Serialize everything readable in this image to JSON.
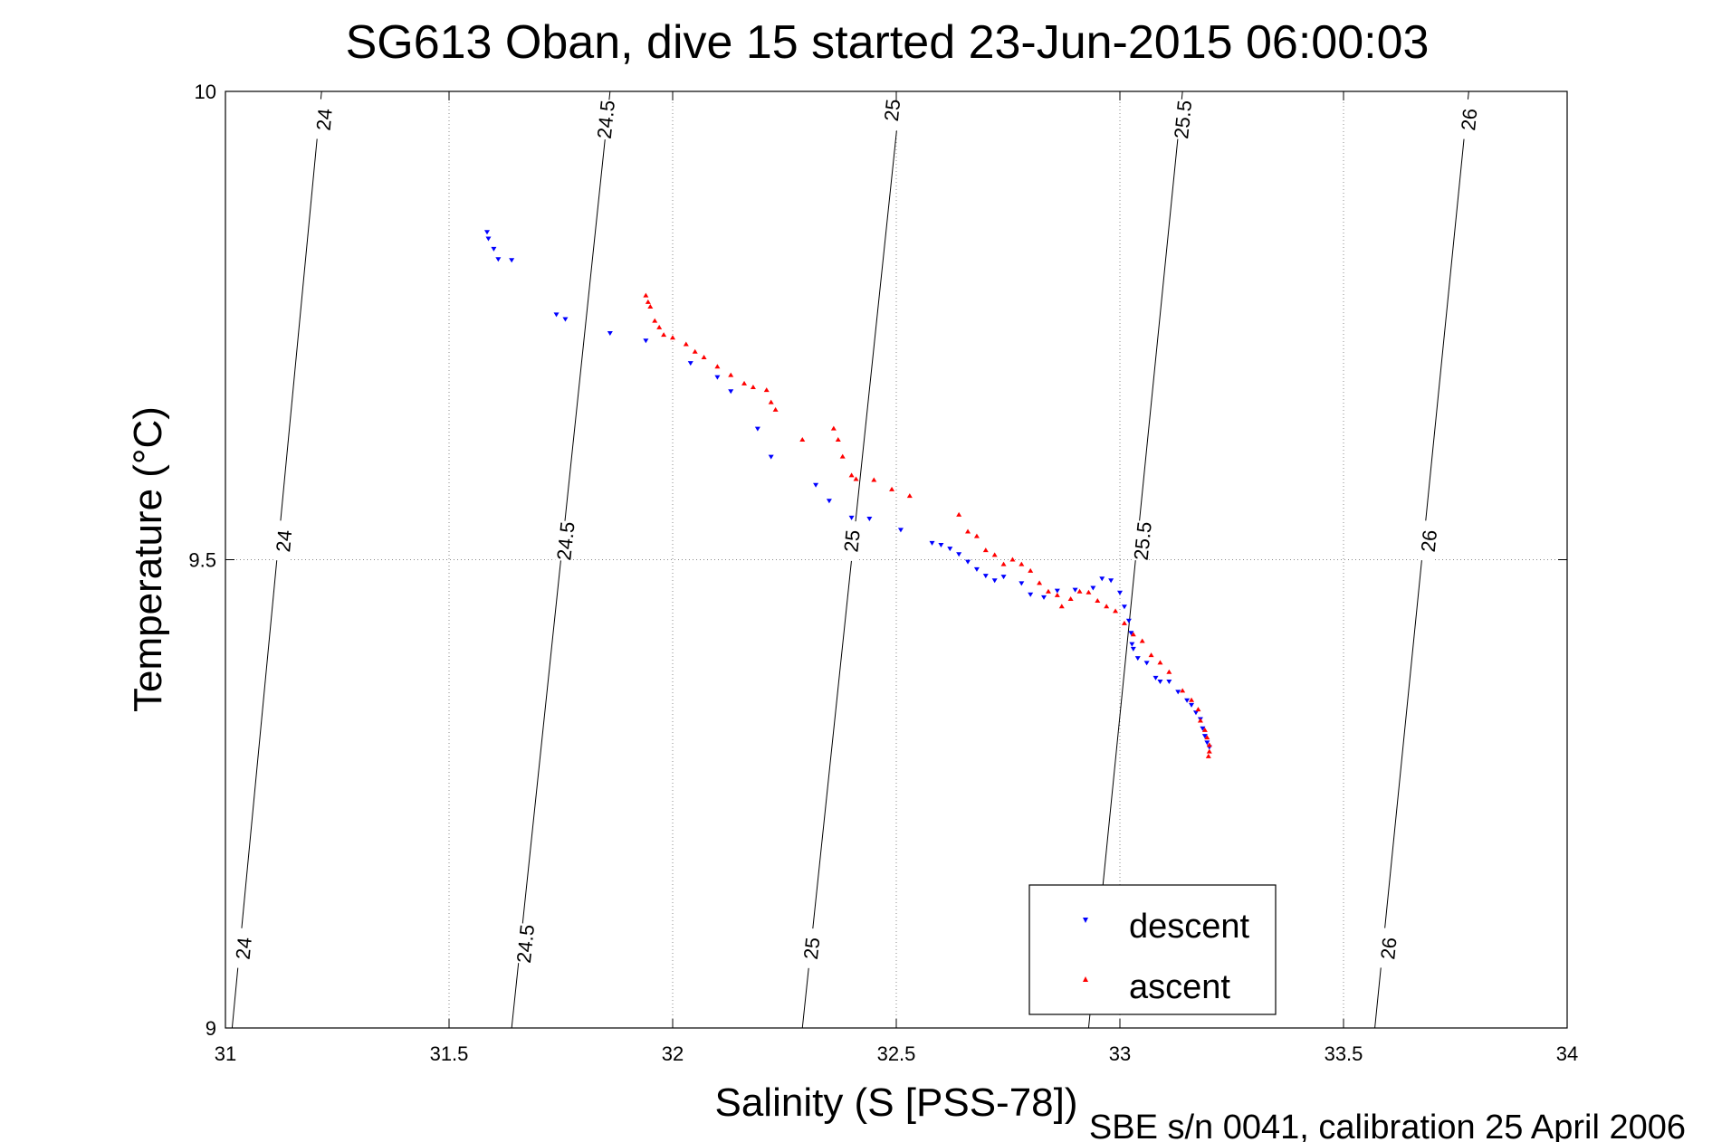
{
  "chart_data": {
    "type": "scatter",
    "title": "SG613 Oban, dive 15 started 23-Jun-2015 06:00:03",
    "xlabel": "Salinity (S [PSS-78])",
    "ylabel": "Temperature (°C)",
    "xlim": [
      31,
      34
    ],
    "ylim": [
      9,
      10
    ],
    "xticks": [
      31,
      31.5,
      32,
      32.5,
      33,
      33.5,
      34
    ],
    "xtick_labels": [
      "31",
      "31.5",
      "32",
      "32.5",
      "33",
      "33.5",
      "34"
    ],
    "yticks": [
      9,
      9.5,
      10
    ],
    "ytick_labels": [
      "9",
      "9.5",
      "10"
    ],
    "grid": "dotted",
    "legend_position": "bottom-right",
    "isopycnals": [
      {
        "label": "24",
        "from": [
          31.015,
          9.0
        ],
        "to": [
          31.215,
          10.0
        ],
        "label_points": [
          [
            31.04,
            9.085
          ],
          [
            31.13,
            9.52
          ],
          [
            31.22,
            9.97
          ]
        ]
      },
      {
        "label": "24.5",
        "from": [
          31.64,
          9.0
        ],
        "to": [
          31.86,
          10.0
        ],
        "label_points": [
          [
            31.67,
            9.09
          ],
          [
            31.76,
            9.52
          ],
          [
            31.85,
            9.97
          ]
        ]
      },
      {
        "label": "25",
        "from": [
          32.29,
          9.0
        ],
        "to": [
          32.51,
          10.0
        ],
        "label_points": [
          [
            32.31,
            9.085
          ],
          [
            32.4,
            9.52
          ],
          [
            32.49,
            9.98
          ]
        ]
      },
      {
        "label": "25.5",
        "from": [
          32.93,
          9.0
        ],
        "to": [
          33.14,
          10.0
        ],
        "label_points": [
          [
            32.96,
            9.085
          ],
          [
            33.05,
            9.52
          ],
          [
            33.14,
            9.97
          ]
        ]
      },
      {
        "label": "26",
        "from": [
          33.57,
          9.0
        ],
        "to": [
          33.78,
          10.0
        ],
        "label_points": [
          [
            33.6,
            9.085
          ],
          [
            33.69,
            9.52
          ],
          [
            33.78,
            9.97
          ]
        ]
      }
    ],
    "series": [
      {
        "name": "descent",
        "color": "#0000ff",
        "marker": "triangle-down",
        "points": [
          [
            31.585,
            9.85
          ],
          [
            31.588,
            9.843
          ],
          [
            31.6,
            9.832
          ],
          [
            31.61,
            9.821
          ],
          [
            31.64,
            9.82
          ],
          [
            31.74,
            9.762
          ],
          [
            31.76,
            9.757
          ],
          [
            31.86,
            9.742
          ],
          [
            31.94,
            9.734
          ],
          [
            32.04,
            9.71
          ],
          [
            32.1,
            9.695
          ],
          [
            32.13,
            9.68
          ],
          [
            32.19,
            9.64
          ],
          [
            32.22,
            9.61
          ],
          [
            32.32,
            9.58
          ],
          [
            32.35,
            9.563
          ],
          [
            32.4,
            9.545
          ],
          [
            32.44,
            9.544
          ],
          [
            32.51,
            9.532
          ],
          [
            32.58,
            9.518
          ],
          [
            32.6,
            9.516
          ],
          [
            32.62,
            9.512
          ],
          [
            32.64,
            9.506
          ],
          [
            32.66,
            9.498
          ],
          [
            32.68,
            9.49
          ],
          [
            32.7,
            9.483
          ],
          [
            32.72,
            9.478
          ],
          [
            32.74,
            9.482
          ],
          [
            32.78,
            9.475
          ],
          [
            32.8,
            9.463
          ],
          [
            32.83,
            9.46
          ],
          [
            32.86,
            9.467
          ],
          [
            32.9,
            9.468
          ],
          [
            32.94,
            9.47
          ],
          [
            32.96,
            9.48
          ],
          [
            32.98,
            9.478
          ],
          [
            33.0,
            9.465
          ],
          [
            33.01,
            9.45
          ],
          [
            33.02,
            9.435
          ],
          [
            33.025,
            9.422
          ],
          [
            33.027,
            9.41
          ],
          [
            33.03,
            9.405
          ],
          [
            33.04,
            9.395
          ],
          [
            33.06,
            9.39
          ],
          [
            33.08,
            9.374
          ],
          [
            33.09,
            9.37
          ],
          [
            33.11,
            9.37
          ],
          [
            33.13,
            9.359
          ],
          [
            33.15,
            9.35
          ],
          [
            33.16,
            9.345
          ],
          [
            33.17,
            9.337
          ],
          [
            33.18,
            9.33
          ],
          [
            33.185,
            9.32
          ],
          [
            33.19,
            9.312
          ],
          [
            33.195,
            9.305
          ],
          [
            33.2,
            9.3
          ]
        ]
      },
      {
        "name": "ascent",
        "color": "#ff0000",
        "marker": "triangle-up",
        "points": [
          [
            31.94,
            9.782
          ],
          [
            31.945,
            9.775
          ],
          [
            31.95,
            9.77
          ],
          [
            31.96,
            9.755
          ],
          [
            31.97,
            9.748
          ],
          [
            31.98,
            9.74
          ],
          [
            32.0,
            9.737
          ],
          [
            32.03,
            9.73
          ],
          [
            32.05,
            9.722
          ],
          [
            32.07,
            9.716
          ],
          [
            32.1,
            9.706
          ],
          [
            32.13,
            9.697
          ],
          [
            32.16,
            9.688
          ],
          [
            32.18,
            9.684
          ],
          [
            32.21,
            9.681
          ],
          [
            32.22,
            9.668
          ],
          [
            32.23,
            9.66
          ],
          [
            32.29,
            9.628
          ],
          [
            32.36,
            9.64
          ],
          [
            32.37,
            9.628
          ],
          [
            32.38,
            9.61
          ],
          [
            32.4,
            9.59
          ],
          [
            32.41,
            9.586
          ],
          [
            32.45,
            9.585
          ],
          [
            32.49,
            9.575
          ],
          [
            32.53,
            9.568
          ],
          [
            32.64,
            9.548
          ],
          [
            32.66,
            9.53
          ],
          [
            32.68,
            9.525
          ],
          [
            32.7,
            9.51
          ],
          [
            32.72,
            9.505
          ],
          [
            32.74,
            9.495
          ],
          [
            32.76,
            9.5
          ],
          [
            32.78,
            9.495
          ],
          [
            32.8,
            9.488
          ],
          [
            32.82,
            9.475
          ],
          [
            32.84,
            9.466
          ],
          [
            32.86,
            9.462
          ],
          [
            32.87,
            9.45
          ],
          [
            32.89,
            9.458
          ],
          [
            32.91,
            9.466
          ],
          [
            32.93,
            9.465
          ],
          [
            32.95,
            9.456
          ],
          [
            32.97,
            9.45
          ],
          [
            32.99,
            9.445
          ],
          [
            33.01,
            9.432
          ],
          [
            33.03,
            9.42
          ],
          [
            33.05,
            9.413
          ],
          [
            33.07,
            9.398
          ],
          [
            33.09,
            9.39
          ],
          [
            33.11,
            9.38
          ],
          [
            33.14,
            9.36
          ],
          [
            33.16,
            9.35
          ],
          [
            33.175,
            9.34
          ],
          [
            33.18,
            9.328
          ],
          [
            33.19,
            9.318
          ],
          [
            33.195,
            9.31
          ],
          [
            33.2,
            9.302
          ],
          [
            33.2,
            9.295
          ],
          [
            33.198,
            9.29
          ]
        ]
      }
    ],
    "footer": "SBE s/n 0041, calibration 25 April 2006"
  },
  "legend": {
    "descent_label": "descent",
    "ascent_label": "ascent"
  }
}
